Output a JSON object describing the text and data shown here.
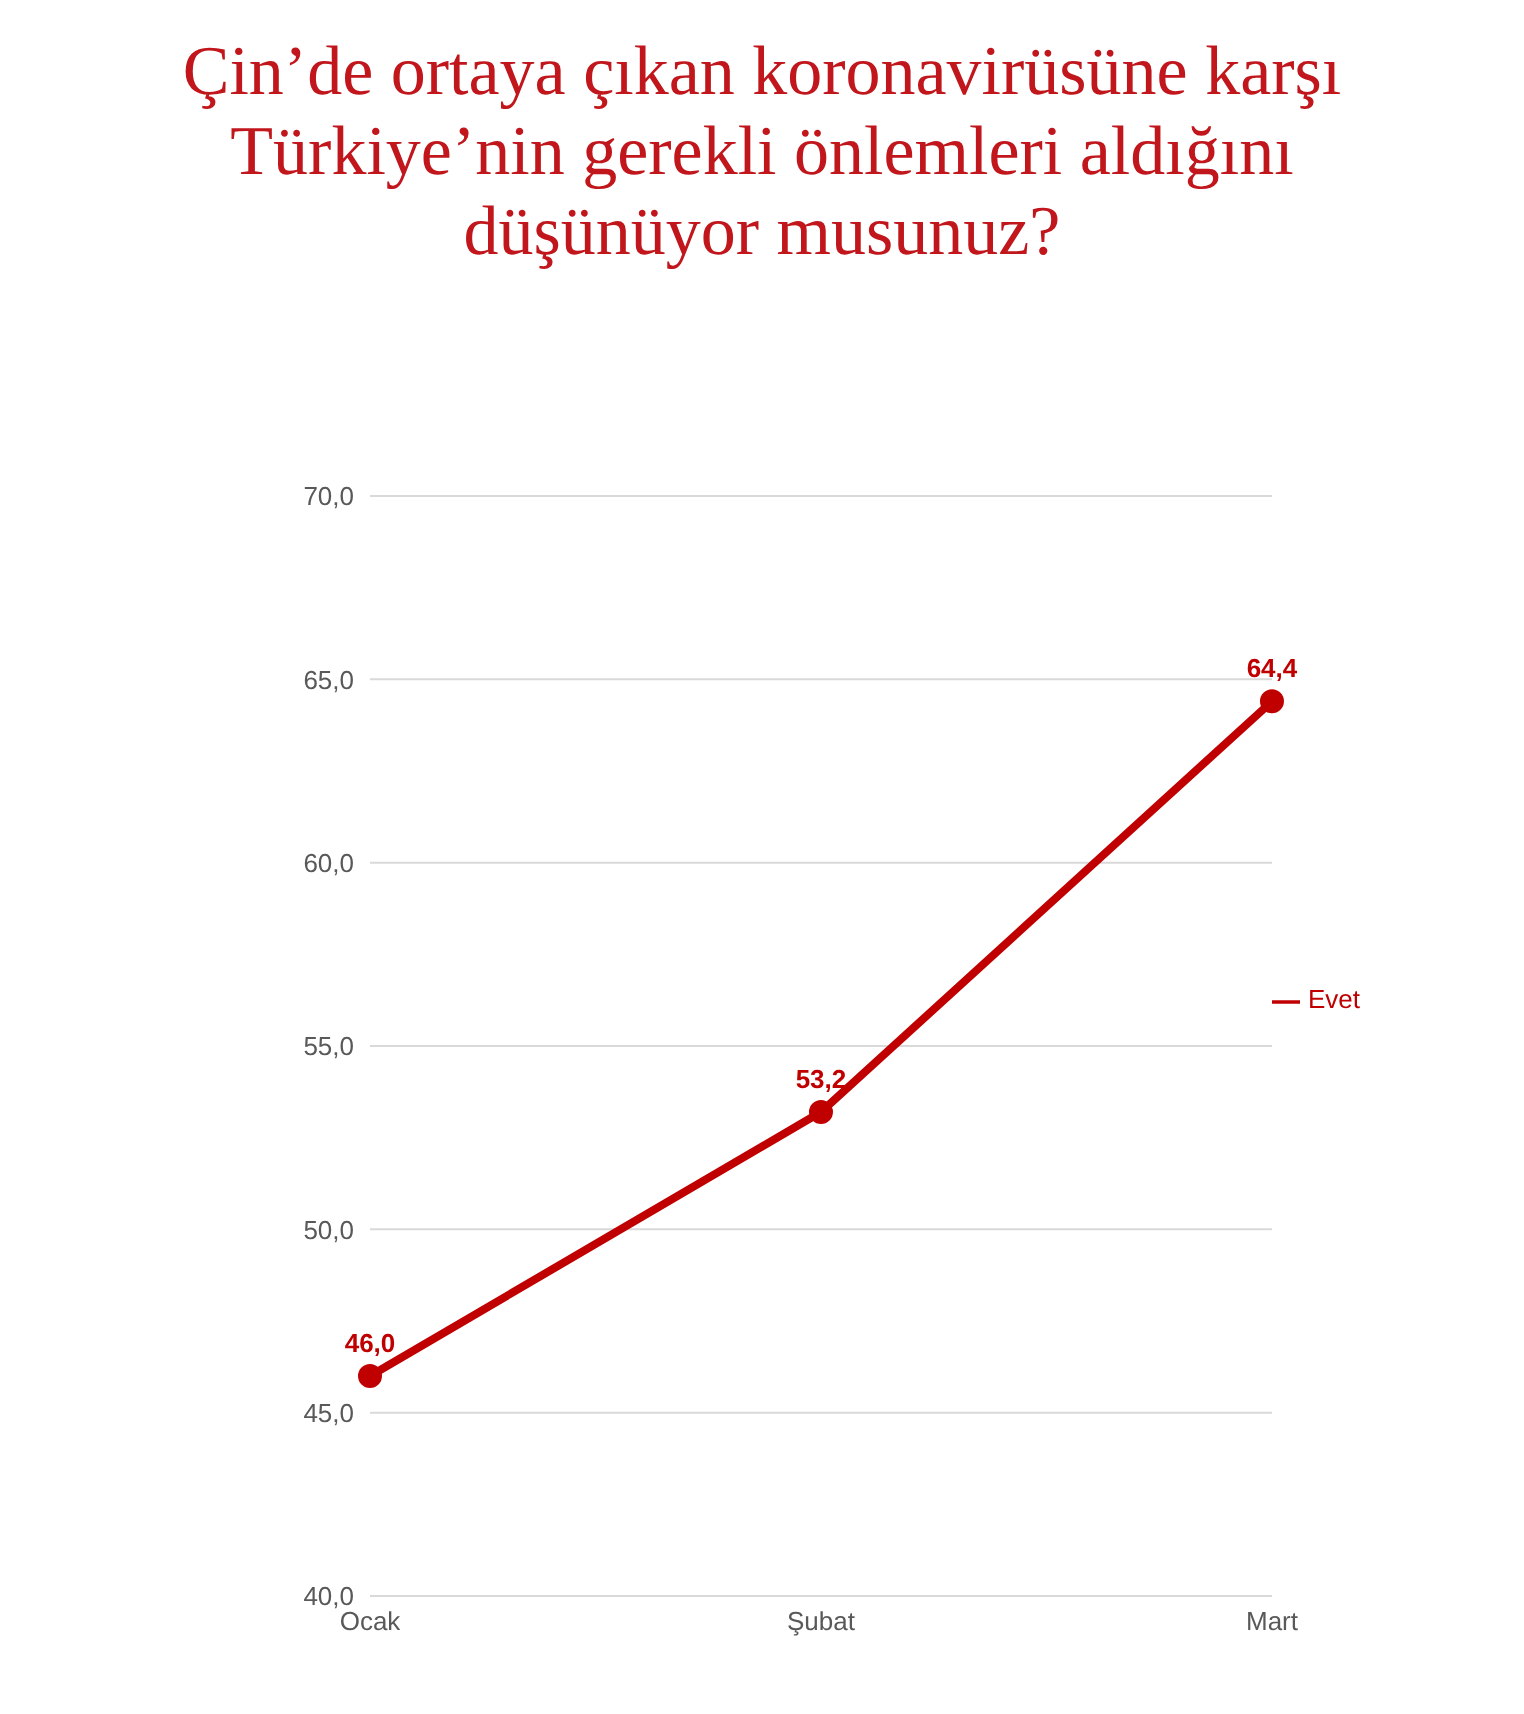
{
  "chart_data": {
    "type": "line",
    "title": "Çin’de ortaya çıkan koronavirüsüne karşı Türkiye’nin gerekli önlemleri aldığını düşünüyor musunuz?",
    "categories": [
      "Ocak",
      "Şubat",
      "Mart"
    ],
    "series": [
      {
        "name": "Evet",
        "color": "#c00000",
        "values": [
          46.0,
          53.2,
          64.4
        ],
        "value_labels": [
          "46,0",
          "53,2",
          "64,4"
        ]
      }
    ],
    "ylim": [
      40,
      70
    ],
    "yticks": [
      {
        "value": 40,
        "label": "40,0"
      },
      {
        "value": 45,
        "label": "45,0"
      },
      {
        "value": 50,
        "label": "50,0"
      },
      {
        "value": 55,
        "label": "55,0"
      },
      {
        "value": 60,
        "label": "60,0"
      },
      {
        "value": 65,
        "label": "65,0"
      },
      {
        "value": 70,
        "label": "70,0"
      }
    ],
    "grid": "y",
    "legend": "right",
    "marker": "circle",
    "line_style": "solid"
  }
}
